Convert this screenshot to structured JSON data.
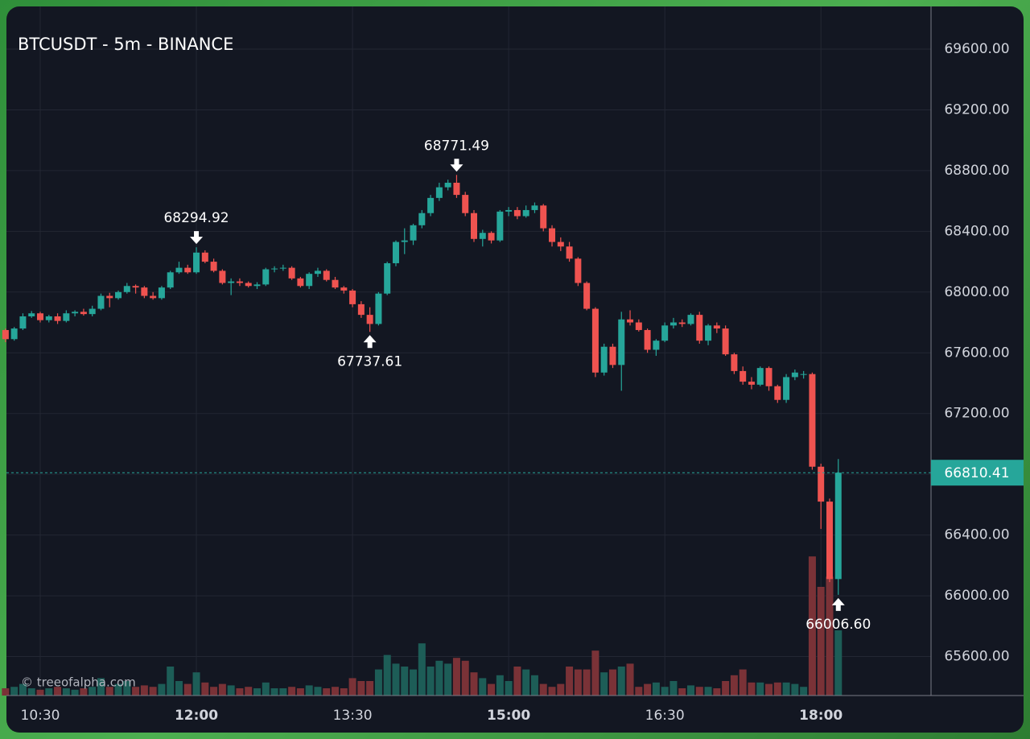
{
  "chart_data": {
    "type": "candlestick",
    "title": "BTCUSDT - 5m - BINANCE",
    "watermark": "© treeofalpha.com",
    "x": [
      "10:10",
      "10:15",
      "10:20",
      "10:25",
      "10:30",
      "10:35",
      "10:40",
      "10:45",
      "10:50",
      "10:55",
      "11:00",
      "11:05",
      "11:10",
      "11:15",
      "11:20",
      "11:25",
      "11:30",
      "11:35",
      "11:40",
      "11:45",
      "11:50",
      "11:55",
      "12:00",
      "12:05",
      "12:10",
      "12:15",
      "12:20",
      "12:25",
      "12:30",
      "12:35",
      "12:40",
      "12:45",
      "12:50",
      "12:55",
      "13:00",
      "13:05",
      "13:10",
      "13:15",
      "13:20",
      "13:25",
      "13:30",
      "13:35",
      "13:40",
      "13:45",
      "13:50",
      "13:55",
      "14:00",
      "14:05",
      "14:10",
      "14:15",
      "14:20",
      "14:25",
      "14:30",
      "14:35",
      "14:40",
      "14:45",
      "14:50",
      "14:55",
      "15:00",
      "15:05",
      "15:10",
      "15:15",
      "15:20",
      "15:25",
      "15:30",
      "15:35",
      "15:40",
      "15:45",
      "15:50",
      "15:55",
      "16:00",
      "16:05",
      "16:10",
      "16:15",
      "16:20",
      "16:25",
      "16:30",
      "16:35",
      "16:40",
      "16:45",
      "16:50",
      "16:55",
      "17:00",
      "17:05",
      "17:10",
      "17:15",
      "17:20",
      "17:25",
      "17:30",
      "17:35",
      "17:40",
      "17:45",
      "17:50",
      "17:55",
      "18:00",
      "18:05",
      "18:10"
    ],
    "open": [
      67750,
      67690,
      67760,
      67840,
      67860,
      67815,
      67840,
      67810,
      67860,
      67870,
      67855,
      67890,
      67975,
      67960,
      68000,
      68040,
      68030,
      67975,
      67960,
      68030,
      68130,
      68160,
      68130,
      68260,
      68200,
      68140,
      68060,
      68070,
      68060,
      68040,
      68050,
      68150,
      68155,
      68160,
      68090,
      68040,
      68120,
      68140,
      68080,
      68030,
      68010,
      67920,
      67850,
      67790,
      67990,
      68190,
      68330,
      68340,
      68440,
      68520,
      68620,
      68690,
      68720,
      68640,
      68520,
      68350,
      68390,
      68340,
      68530,
      68540,
      68500,
      68540,
      68570,
      68420,
      68330,
      68300,
      68220,
      68060,
      67890,
      67470,
      67640,
      67520,
      67820,
      67800,
      67750,
      67620,
      67680,
      67780,
      67800,
      67790,
      67850,
      67680,
      67780,
      67760,
      67590,
      67480,
      67410,
      67390,
      67500,
      67380,
      67290,
      67440,
      67460,
      67460,
      66850,
      66620,
      66110
    ],
    "high": [
      67760,
      67770,
      67860,
      67875,
      67870,
      67850,
      67860,
      67880,
      67880,
      67890,
      67910,
      67990,
      67995,
      68010,
      68060,
      68050,
      68040,
      68000,
      68040,
      68140,
      68200,
      68180,
      68294.92,
      68275,
      68220,
      68150,
      68090,
      68090,
      68070,
      68065,
      68160,
      68170,
      68180,
      68170,
      68100,
      68130,
      68160,
      68150,
      68100,
      68040,
      68020,
      67940,
      67900,
      68000,
      68200,
      68340,
      68420,
      68450,
      68540,
      68640,
      68720,
      68740,
      68771.49,
      68660,
      68540,
      68410,
      68400,
      68540,
      68560,
      68560,
      68570,
      68590,
      68580,
      68440,
      68360,
      68330,
      68230,
      68070,
      67900,
      67660,
      67660,
      67870,
      67880,
      67820,
      67760,
      67690,
      67800,
      67830,
      67820,
      67860,
      67870,
      67790,
      67800,
      67780,
      67600,
      67510,
      67440,
      67510,
      67510,
      67390,
      67460,
      67490,
      67480,
      67470,
      66870,
      66640,
      66900
    ],
    "low": [
      67670,
      67680,
      67750,
      67830,
      67800,
      67800,
      67790,
      67800,
      67840,
      67845,
      67840,
      67880,
      67900,
      67950,
      67990,
      67990,
      67960,
      67950,
      67950,
      68020,
      68120,
      68120,
      68120,
      68190,
      68130,
      68050,
      67980,
      68040,
      68030,
      68020,
      68040,
      68130,
      68140,
      68080,
      68030,
      68020,
      68100,
      68070,
      68020,
      67990,
      67900,
      67830,
      67737.61,
      67780,
      67980,
      68170,
      68250,
      68310,
      68420,
      68500,
      68600,
      68670,
      68620,
      68500,
      68330,
      68300,
      68320,
      68330,
      68500,
      68480,
      68490,
      68520,
      68400,
      68300,
      68270,
      68200,
      68040,
      67880,
      67440,
      67450,
      67500,
      67350,
      67780,
      67740,
      67600,
      67580,
      67670,
      67760,
      67770,
      67780,
      67660,
      67650,
      67730,
      67580,
      67460,
      67390,
      67360,
      67380,
      67350,
      67270,
      67270,
      67420,
      67430,
      66830,
      66440,
      66090,
      66006.6
    ],
    "close": [
      67690,
      67760,
      67840,
      67860,
      67815,
      67840,
      67810,
      67860,
      67870,
      67855,
      67890,
      67975,
      67960,
      68000,
      68040,
      68030,
      67975,
      67960,
      68030,
      68130,
      68160,
      68130,
      68260,
      68200,
      68140,
      68060,
      68070,
      68060,
      68040,
      68050,
      68150,
      68155,
      68160,
      68090,
      68040,
      68120,
      68140,
      68080,
      68030,
      68010,
      67920,
      67850,
      67790,
      67990,
      68190,
      68330,
      68340,
      68440,
      68520,
      68620,
      68690,
      68720,
      68640,
      68520,
      68350,
      68390,
      68340,
      68530,
      68540,
      68500,
      68540,
      68570,
      68420,
      68330,
      68300,
      68220,
      68060,
      67890,
      67470,
      67640,
      67520,
      67820,
      67800,
      67750,
      67620,
      67680,
      67780,
      67800,
      67790,
      67850,
      67680,
      67780,
      67760,
      67590,
      67480,
      67410,
      67390,
      67500,
      67380,
      67290,
      67440,
      67470,
      67460,
      66850,
      66620,
      66110,
      66810.41
    ],
    "volume": [
      5,
      6,
      8,
      5,
      4,
      5,
      6,
      5,
      4,
      5,
      6,
      12,
      6,
      8,
      10,
      6,
      7,
      6,
      8,
      20,
      10,
      8,
      16,
      9,
      6,
      8,
      7,
      5,
      6,
      5,
      9,
      5,
      5,
      6,
      5,
      7,
      6,
      5,
      6,
      5,
      12,
      10,
      10,
      18,
      28,
      22,
      20,
      18,
      36,
      20,
      24,
      22,
      26,
      24,
      16,
      12,
      8,
      14,
      10,
      20,
      18,
      14,
      8,
      6,
      8,
      20,
      18,
      18,
      31,
      16,
      18,
      20,
      22,
      6,
      8,
      9,
      6,
      10,
      5,
      7,
      6,
      6,
      5,
      10,
      14,
      18,
      9,
      9,
      8,
      9,
      9,
      8,
      6,
      96,
      75,
      82,
      45
    ],
    "up_color": "#26a69a",
    "down_color": "#ef5350",
    "volume_up_color": "#1d5d57",
    "volume_down_color": "#7a3237",
    "ylim": [
      65343,
      69881
    ],
    "volume_ylim": [
      0,
      100
    ],
    "yticks": [
      {
        "value": 65600,
        "label": "65600.00"
      },
      {
        "value": 66000,
        "label": "66000.00"
      },
      {
        "value": 66400,
        "label": "66400.00"
      },
      {
        "value": 66800,
        "label": "66800.00"
      },
      {
        "value": 67200,
        "label": "67200.00"
      },
      {
        "value": 67600,
        "label": "67600.00"
      },
      {
        "value": 68000,
        "label": "68000.00"
      },
      {
        "value": 68400,
        "label": "68400.00"
      },
      {
        "value": 68800,
        "label": "68800.00"
      },
      {
        "value": 69200,
        "label": "69200.00"
      },
      {
        "value": 69600,
        "label": "69600.00"
      }
    ],
    "xticks": [
      "10:30",
      "12:00",
      "13:30",
      "15:00",
      "16:30",
      "18:00"
    ],
    "grid": true,
    "last_price": {
      "value": 66810.41,
      "color": "#26a69a"
    },
    "annotations": [
      {
        "x": "12:00",
        "value": 68294.92,
        "position": "above"
      },
      {
        "x": "13:40",
        "value": 67737.61,
        "position": "below"
      },
      {
        "x": "14:30",
        "value": 68771.49,
        "position": "above"
      },
      {
        "x": "18:10",
        "value": 66006.6,
        "label": "66006.60",
        "position": "below"
      }
    ]
  }
}
